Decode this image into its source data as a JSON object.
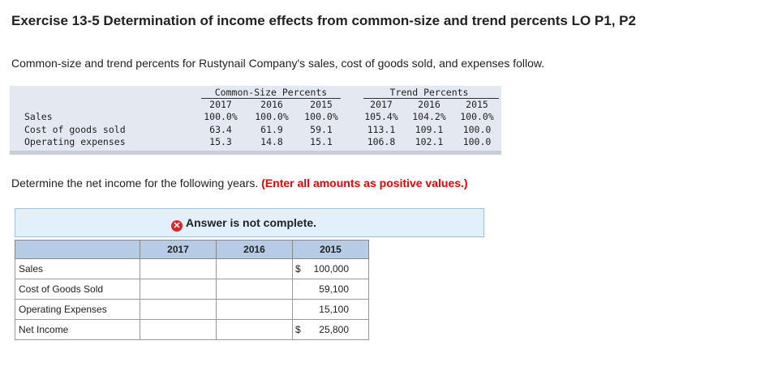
{
  "header": {
    "title": "Exercise 13-5 Determination of income effects from common-size and trend percents LO P1, P2"
  },
  "intro": "Common-size and trend percents for Rustynail Company's sales, cost of goods sold, and expenses follow.",
  "percent_table": {
    "groups": [
      "Common-Size Percents",
      "Trend Percents"
    ],
    "years": [
      "2017",
      "2016",
      "2015",
      "2017",
      "2016",
      "2015"
    ],
    "rows": [
      {
        "label": "Sales",
        "values": [
          "100.0%",
          "100.0%",
          "100.0%",
          "105.4%",
          "104.2%",
          "100.0%"
        ]
      },
      {
        "label": "Cost of goods sold",
        "values": [
          "63.4",
          "61.9",
          "59.1",
          "113.1",
          "109.1",
          "100.0"
        ]
      },
      {
        "label": "Operating expenses",
        "values": [
          "15.3",
          "14.8",
          "15.1",
          "106.8",
          "102.1",
          "100.0"
        ]
      }
    ]
  },
  "instruction": {
    "text": "Determine the net income for the following years.",
    "note": "(Enter all amounts as positive values.)"
  },
  "status": "Answer is not complete.",
  "answer_table": {
    "columns": [
      "2017",
      "2016",
      "2015"
    ],
    "rows": [
      {
        "label": "Sales",
        "currency": "$",
        "value": "100,000"
      },
      {
        "label": "Cost of Goods Sold",
        "value": "59,100"
      },
      {
        "label": "Operating Expenses",
        "value": "15,100"
      },
      {
        "label": "Net Income",
        "currency": "$",
        "value": "25,800"
      }
    ]
  }
}
